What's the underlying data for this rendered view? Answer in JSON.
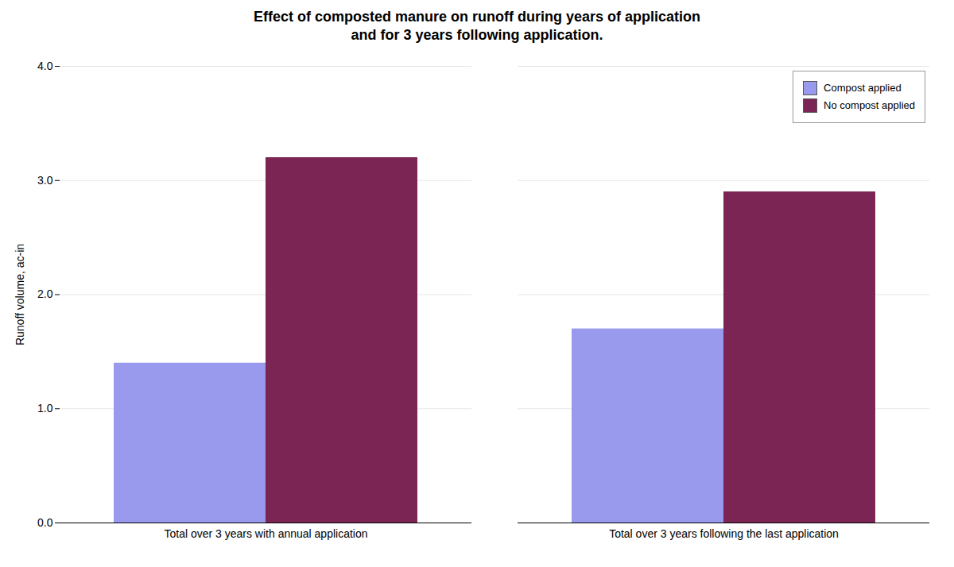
{
  "chart_data": {
    "type": "bar",
    "title": "Effect of composted manure on runoff during years of application\nand for 3 years following application.",
    "ylabel": "Runoff volume, ac-in",
    "categories": [
      "Total over 3 years with annual application",
      "Total over 3 years following the last application"
    ],
    "series": [
      {
        "name": "Compost applied",
        "color": "#9999EE",
        "values": [
          1.4,
          1.7
        ]
      },
      {
        "name": "No compost applied",
        "color": "#7B2555",
        "values": [
          3.2,
          2.9
        ]
      }
    ],
    "ylim": [
      0,
      4
    ],
    "yticks": [
      0,
      1,
      2,
      3,
      4
    ],
    "grid": true,
    "legend": "upper right"
  }
}
